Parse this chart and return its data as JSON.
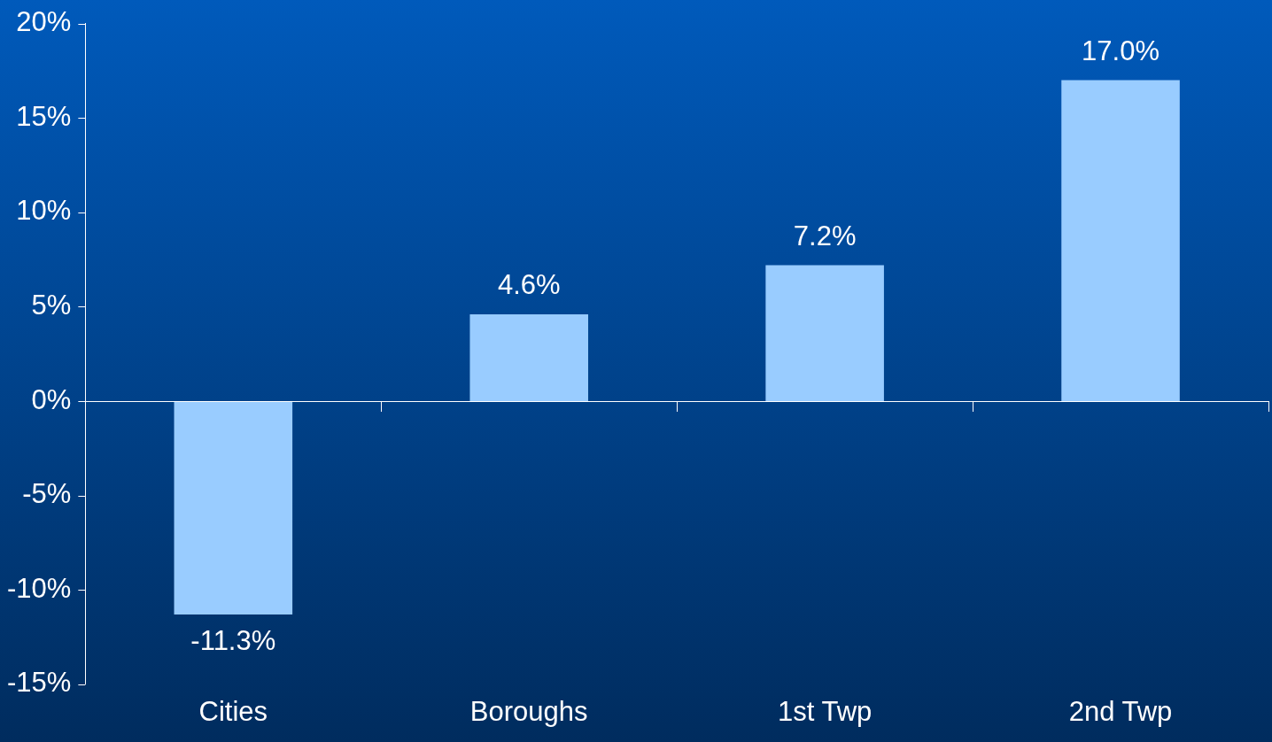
{
  "chart_data": {
    "type": "bar",
    "categories": [
      "Cities",
      "Boroughs",
      "1st Twp",
      "2nd Twp"
    ],
    "values": [
      -11.3,
      4.6,
      7.2,
      17.0
    ],
    "value_labels": [
      "-11.3%",
      "4.6%",
      "7.2%",
      "17.0%"
    ],
    "color": "#99ccff",
    "ylim": [
      -15,
      20
    ],
    "yticks": [
      {
        "value": -15,
        "label": "-15%"
      },
      {
        "value": -10,
        "label": "-10%"
      },
      {
        "value": -5,
        "label": "-5%"
      },
      {
        "value": 0,
        "label": "0%"
      },
      {
        "value": 5,
        "label": "5%"
      },
      {
        "value": 10,
        "label": "10%"
      },
      {
        "value": 15,
        "label": "15%"
      },
      {
        "value": 20,
        "label": "20%"
      }
    ],
    "ref_lines": [
      {
        "axis": "y",
        "value": 0,
        "color": "#ffffff",
        "line_style": "solid"
      }
    ],
    "grid": false,
    "legend": false
  }
}
